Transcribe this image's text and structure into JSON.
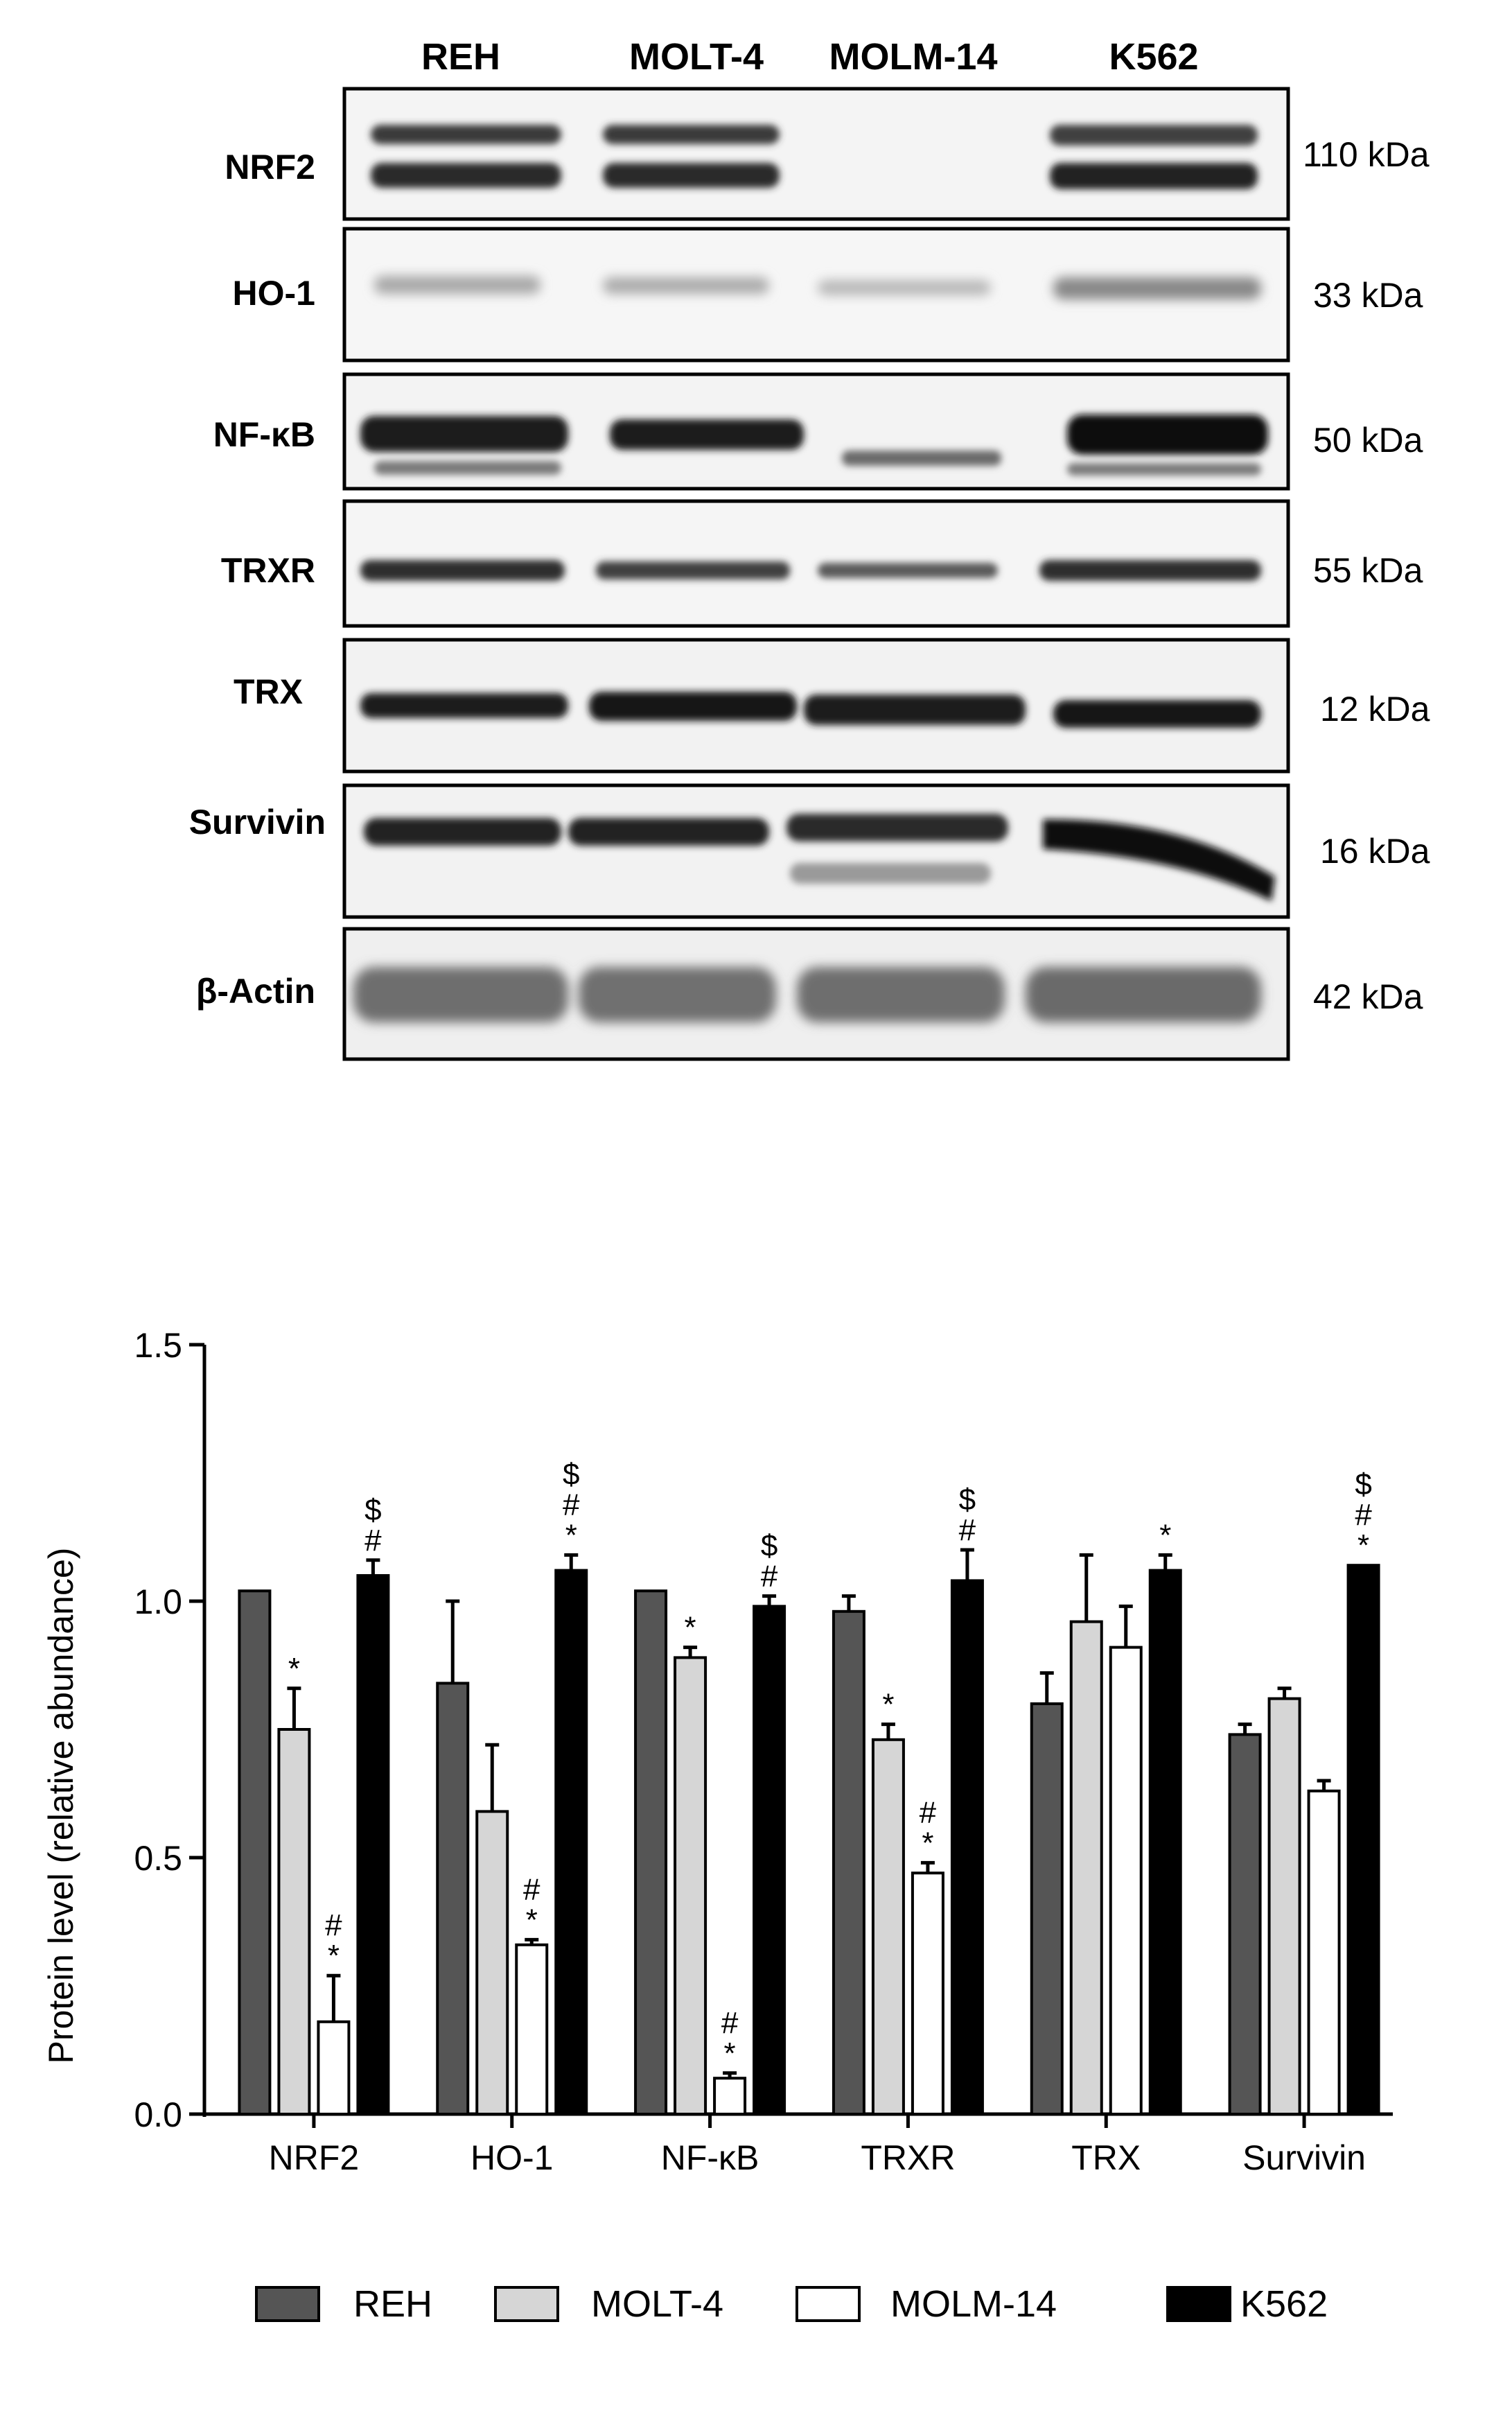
{
  "blot": {
    "lanes": [
      "REH",
      "MOLT-4",
      "MOLM-14",
      "K562"
    ],
    "rows": [
      {
        "protein": "NRF2",
        "kda": "110 kDa"
      },
      {
        "protein": "HO-1",
        "kda": "33 kDa"
      },
      {
        "protein": "NF-κB",
        "kda": "50 kDa"
      },
      {
        "protein": "TRXR",
        "kda": "55 kDa"
      },
      {
        "protein": "TRX",
        "kda": "12 kDa"
      },
      {
        "protein": "Survivin",
        "kda": "16 kDa"
      },
      {
        "protein": "β-Actin",
        "kda": "42 kDa"
      }
    ]
  },
  "chart_data": {
    "type": "bar",
    "ylabel": "Protein level (relative abundance)",
    "xlabel": "",
    "ylim": [
      0,
      1.5
    ],
    "yticks": [
      "0.0",
      "0.5",
      "1.0",
      "1.5"
    ],
    "categories": [
      "NRF2",
      "HO-1",
      "NF-κB",
      "TRXR",
      "TRX",
      "Survivin"
    ],
    "series": [
      {
        "name": "REH",
        "color": "#555555",
        "values": [
          1.02,
          0.84,
          1.02,
          0.98,
          0.8,
          0.74
        ],
        "errors": [
          0,
          0.16,
          0,
          0.03,
          0.06,
          0.02
        ],
        "marks": [
          "",
          "",
          "",
          "",
          "",
          ""
        ]
      },
      {
        "name": "MOLT-4",
        "color": "#d6d6d6",
        "values": [
          0.75,
          0.59,
          0.89,
          0.73,
          0.96,
          0.81
        ],
        "errors": [
          0.08,
          0.13,
          0.02,
          0.03,
          0.13,
          0.02
        ],
        "marks": [
          "*",
          "",
          "*",
          "*",
          "",
          ""
        ]
      },
      {
        "name": "MOLM-14",
        "color": "#ffffff",
        "values": [
          0.18,
          0.33,
          0.07,
          0.47,
          0.91,
          0.63
        ],
        "errors": [
          0.09,
          0.01,
          0.01,
          0.02,
          0.08,
          0.02
        ],
        "marks": [
          "#*",
          "#*",
          "#*",
          "#*",
          "",
          ""
        ]
      },
      {
        "name": "K562",
        "color": "#000000",
        "values": [
          1.05,
          1.06,
          0.99,
          1.04,
          1.06,
          1.07
        ],
        "errors": [
          0.03,
          0.03,
          0.02,
          0.06,
          0.03,
          0
        ],
        "marks": [
          "$#",
          "$#*",
          "$#",
          "$#",
          "*",
          "$#*"
        ]
      }
    ],
    "legend": "bottom",
    "grid": false
  }
}
